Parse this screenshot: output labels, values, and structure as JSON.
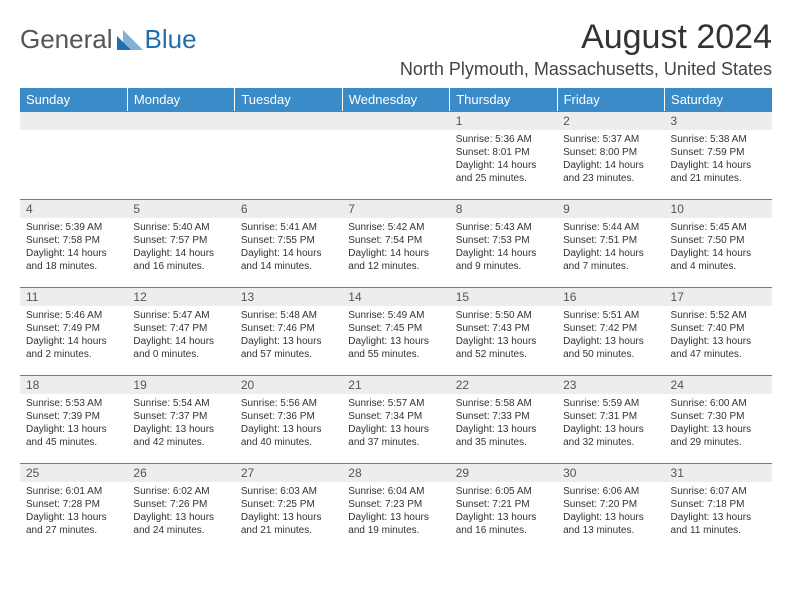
{
  "logo": {
    "general": "General",
    "blue": "Blue",
    "tri_color": "#1f6fb2"
  },
  "title": "August 2024",
  "location": "North Plymouth, Massachusetts, United States",
  "colors": {
    "header_bg": "#3b8bc9",
    "header_text": "#ffffff",
    "daynum_bg": "#eceded",
    "rule": "#3b8bc9",
    "text": "#333333"
  },
  "weekdays": [
    "Sunday",
    "Monday",
    "Tuesday",
    "Wednesday",
    "Thursday",
    "Friday",
    "Saturday"
  ],
  "weeks": [
    [
      null,
      null,
      null,
      null,
      {
        "n": "1",
        "sr": "5:36 AM",
        "ss": "8:01 PM",
        "dl": "14 hours and 25 minutes."
      },
      {
        "n": "2",
        "sr": "5:37 AM",
        "ss": "8:00 PM",
        "dl": "14 hours and 23 minutes."
      },
      {
        "n": "3",
        "sr": "5:38 AM",
        "ss": "7:59 PM",
        "dl": "14 hours and 21 minutes."
      }
    ],
    [
      {
        "n": "4",
        "sr": "5:39 AM",
        "ss": "7:58 PM",
        "dl": "14 hours and 18 minutes."
      },
      {
        "n": "5",
        "sr": "5:40 AM",
        "ss": "7:57 PM",
        "dl": "14 hours and 16 minutes."
      },
      {
        "n": "6",
        "sr": "5:41 AM",
        "ss": "7:55 PM",
        "dl": "14 hours and 14 minutes."
      },
      {
        "n": "7",
        "sr": "5:42 AM",
        "ss": "7:54 PM",
        "dl": "14 hours and 12 minutes."
      },
      {
        "n": "8",
        "sr": "5:43 AM",
        "ss": "7:53 PM",
        "dl": "14 hours and 9 minutes."
      },
      {
        "n": "9",
        "sr": "5:44 AM",
        "ss": "7:51 PM",
        "dl": "14 hours and 7 minutes."
      },
      {
        "n": "10",
        "sr": "5:45 AM",
        "ss": "7:50 PM",
        "dl": "14 hours and 4 minutes."
      }
    ],
    [
      {
        "n": "11",
        "sr": "5:46 AM",
        "ss": "7:49 PM",
        "dl": "14 hours and 2 minutes."
      },
      {
        "n": "12",
        "sr": "5:47 AM",
        "ss": "7:47 PM",
        "dl": "14 hours and 0 minutes."
      },
      {
        "n": "13",
        "sr": "5:48 AM",
        "ss": "7:46 PM",
        "dl": "13 hours and 57 minutes."
      },
      {
        "n": "14",
        "sr": "5:49 AM",
        "ss": "7:45 PM",
        "dl": "13 hours and 55 minutes."
      },
      {
        "n": "15",
        "sr": "5:50 AM",
        "ss": "7:43 PM",
        "dl": "13 hours and 52 minutes."
      },
      {
        "n": "16",
        "sr": "5:51 AM",
        "ss": "7:42 PM",
        "dl": "13 hours and 50 minutes."
      },
      {
        "n": "17",
        "sr": "5:52 AM",
        "ss": "7:40 PM",
        "dl": "13 hours and 47 minutes."
      }
    ],
    [
      {
        "n": "18",
        "sr": "5:53 AM",
        "ss": "7:39 PM",
        "dl": "13 hours and 45 minutes."
      },
      {
        "n": "19",
        "sr": "5:54 AM",
        "ss": "7:37 PM",
        "dl": "13 hours and 42 minutes."
      },
      {
        "n": "20",
        "sr": "5:56 AM",
        "ss": "7:36 PM",
        "dl": "13 hours and 40 minutes."
      },
      {
        "n": "21",
        "sr": "5:57 AM",
        "ss": "7:34 PM",
        "dl": "13 hours and 37 minutes."
      },
      {
        "n": "22",
        "sr": "5:58 AM",
        "ss": "7:33 PM",
        "dl": "13 hours and 35 minutes."
      },
      {
        "n": "23",
        "sr": "5:59 AM",
        "ss": "7:31 PM",
        "dl": "13 hours and 32 minutes."
      },
      {
        "n": "24",
        "sr": "6:00 AM",
        "ss": "7:30 PM",
        "dl": "13 hours and 29 minutes."
      }
    ],
    [
      {
        "n": "25",
        "sr": "6:01 AM",
        "ss": "7:28 PM",
        "dl": "13 hours and 27 minutes."
      },
      {
        "n": "26",
        "sr": "6:02 AM",
        "ss": "7:26 PM",
        "dl": "13 hours and 24 minutes."
      },
      {
        "n": "27",
        "sr": "6:03 AM",
        "ss": "7:25 PM",
        "dl": "13 hours and 21 minutes."
      },
      {
        "n": "28",
        "sr": "6:04 AM",
        "ss": "7:23 PM",
        "dl": "13 hours and 19 minutes."
      },
      {
        "n": "29",
        "sr": "6:05 AM",
        "ss": "7:21 PM",
        "dl": "13 hours and 16 minutes."
      },
      {
        "n": "30",
        "sr": "6:06 AM",
        "ss": "7:20 PM",
        "dl": "13 hours and 13 minutes."
      },
      {
        "n": "31",
        "sr": "6:07 AM",
        "ss": "7:18 PM",
        "dl": "13 hours and 11 minutes."
      }
    ]
  ],
  "labels": {
    "sunrise": "Sunrise:",
    "sunset": "Sunset:",
    "daylight": "Daylight:"
  }
}
